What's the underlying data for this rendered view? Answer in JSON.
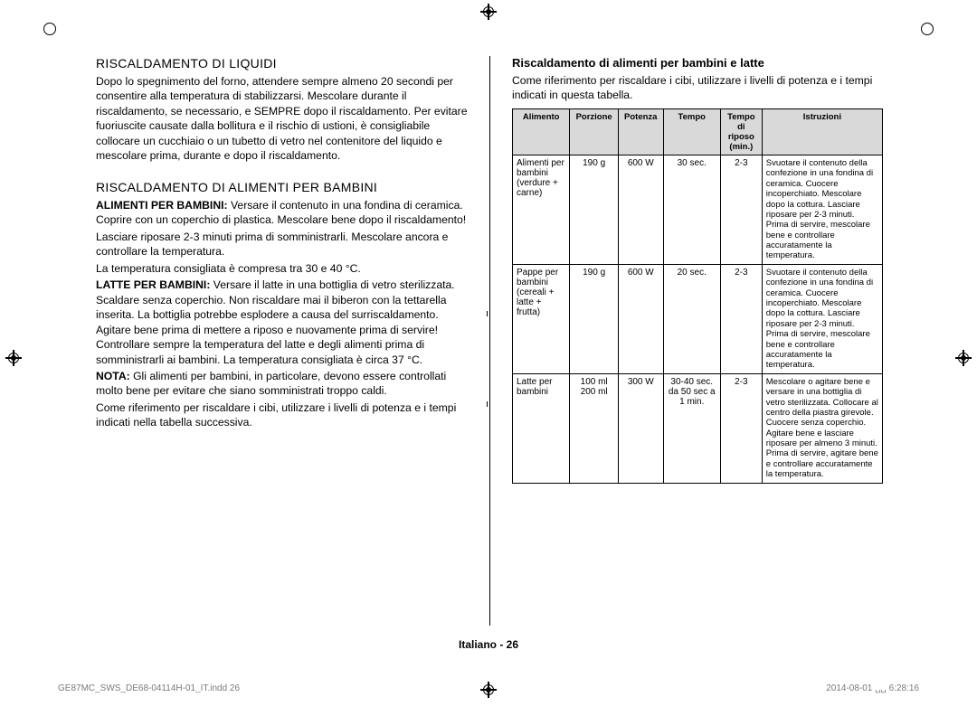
{
  "left": {
    "h2a": "RISCALDAMENTO DI LIQUIDI",
    "pa": "Dopo lo spegnimento del forno, attendere sempre almeno 20 secondi per consentire alla temperatura di stabilizzarsi. Mescolare durante il riscaldamento, se necessario, e SEMPRE dopo il riscaldamento. Per evitare fuoriuscite causate dalla bollitura e il rischio di ustioni, è consigliabile collocare un cucchiaio o un tubetto di vetro nel contenitore del liquido e mescolare prima, durante e dopo il riscaldamento.",
    "h2b": "RISCALDAMENTO DI ALIMENTI PER BAMBINI",
    "pb1_lead": "ALIMENTI PER BAMBINI:",
    "pb1": "  Versare il contenuto in una fondina di ceramica. Coprire con un coperchio di plastica. Mescolare bene dopo il riscaldamento!",
    "pb2": "Lasciare riposare 2-3 minuti prima di somministrarli. Mescolare ancora e controllare la temperatura.",
    "pb3": "La temperatura consigliata è compresa tra 30 e 40 °C.",
    "pb4_lead": "LATTE PER BAMBINI:",
    "pb4": "  Versare il latte in una bottiglia di vetro sterilizzata. Scaldare senza coperchio. Non riscaldare mai il biberon con la tettarella inserita. La bottiglia potrebbe esplodere a causa del surriscaldamento. Agitare bene prima di mettere a riposo e nuovamente prima di servire! Controllare sempre la temperatura del latte e degli alimenti prima di somministrarli ai bambini. La temperatura consigliata è circa 37 °C.",
    "pb5_lead": "NOTA:",
    "pb5": " Gli alimenti per bambini, in particolare, devono essere controllati molto bene per evitare che siano somministrati troppo caldi.",
    "pb6": "Come riferimento per riscaldare i cibi, utilizzare i livelli di potenza e i tempi indicati nella tabella successiva."
  },
  "right": {
    "h3": "Riscaldamento di alimenti per bambini e latte",
    "intro": "Come riferimento per riscaldare i cibi, utilizzare i livelli di potenza e i tempi indicati in questa tabella.",
    "headers": [
      "Alimento",
      "Porzione",
      "Potenza",
      "Tempo",
      "Tempo di riposo (min.)",
      "Istruzioni"
    ],
    "rows": [
      {
        "food": "Alimenti per bambini (verdure + carne)",
        "porz": "190 g",
        "pot": "600 W",
        "tempo": "30 sec.",
        "rip": "2-3",
        "instr": "Svuotare il contenuto della confezione in una fondina di ceramica. Cuocere incoperchiato. Mescolare dopo la cottura. Lasciare riposare per 2-3 minuti. Prima di servire, mescolare bene e controllare accuratamente la temperatura."
      },
      {
        "food": "Pappe per bambini (cereali + latte + frutta)",
        "porz": "190 g",
        "pot": "600 W",
        "tempo": "20 sec.",
        "rip": "2-3",
        "instr": "Svuotare il contenuto della confezione in una fondina di ceramica. Cuocere incoperchiato. Mescolare dopo la cottura. Lasciare riposare per 2-3 minuti. Prima di servire, mescolare bene e controllare accuratamente la temperatura."
      },
      {
        "food": "Latte per bambini",
        "porz": "100 ml\n200 ml",
        "pot": "300 W",
        "tempo": "30-40 sec.\nda 50 sec a 1 min.",
        "rip": "2-3",
        "instr": "Mescolare o agitare bene e versare in una bottiglia di vetro sterilizzata. Collocare al centro della piastra girevole. Cuocere senza coperchio. Agitare bene e lasciare riposare per almeno 3 minuti. Prima di servire, agitare bene e controllare accuratamente la temperatura."
      }
    ]
  },
  "footer": "Italiano - 26",
  "meta_left": "GE87MC_SWS_DE68-04114H-01_IT.indd   26",
  "meta_right": "2014-08-01   ␣␣ 6:28:16"
}
